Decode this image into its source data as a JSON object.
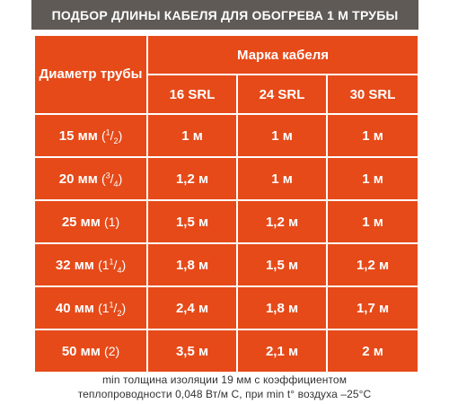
{
  "title": "ПОДБОР ДЛИНЫ КАБЕЛЯ ДЛЯ ОБОГРЕВА 1 М ТРУБЫ",
  "table": {
    "pipe_diameter_header": "Диаметр трубы",
    "cable_brand_header": "Марка кабеля",
    "cable_types": [
      "16 SRL",
      "24 SRL",
      "30 SRL"
    ],
    "rows": [
      {
        "diameter": "15 мм",
        "fraction_open": "(",
        "fraction_num": "1",
        "fraction_sep": "/",
        "fraction_den": "2",
        "fraction_close": ")",
        "values": [
          "1 м",
          "1 м",
          "1 м"
        ]
      },
      {
        "diameter": "20 мм",
        "fraction_open": "(",
        "fraction_num": "3",
        "fraction_sep": "/",
        "fraction_den": "4",
        "fraction_close": ")",
        "values": [
          "1,2 м",
          "1 м",
          "1 м"
        ]
      },
      {
        "diameter": "25 мм",
        "fraction_open": "(1)",
        "fraction_num": "",
        "fraction_sep": "",
        "fraction_den": "",
        "fraction_close": "",
        "values": [
          "1,5 м",
          "1,2 м",
          "1 м"
        ]
      },
      {
        "diameter": "32 мм",
        "fraction_open": "(1",
        "fraction_num": "1",
        "fraction_sep": "/",
        "fraction_den": "4",
        "fraction_close": ")",
        "values": [
          "1,8 м",
          "1,5 м",
          "1,2 м"
        ]
      },
      {
        "diameter": "40 мм",
        "fraction_open": "(1",
        "fraction_num": "1",
        "fraction_sep": "/",
        "fraction_den": "2",
        "fraction_close": ")",
        "values": [
          "2,4 м",
          "1,8 м",
          "1,7 м"
        ]
      },
      {
        "diameter": "50 мм",
        "fraction_open": "(2)",
        "fraction_num": "",
        "fraction_sep": "",
        "fraction_den": "",
        "fraction_close": "",
        "values": [
          "3,5 м",
          "2,1 м",
          "2 м"
        ]
      }
    ]
  },
  "footnote": {
    "line1": "min толщина изоляции 19 мм с коэффициентом",
    "line2": "теплопроводности 0,048 Вт/м С, при min t° воздуха –25°C"
  },
  "colors": {
    "accent": "#e64a19",
    "title_bg": "#5f5a56",
    "text_on_accent": "#ffffff",
    "footnote_text": "#333333"
  }
}
